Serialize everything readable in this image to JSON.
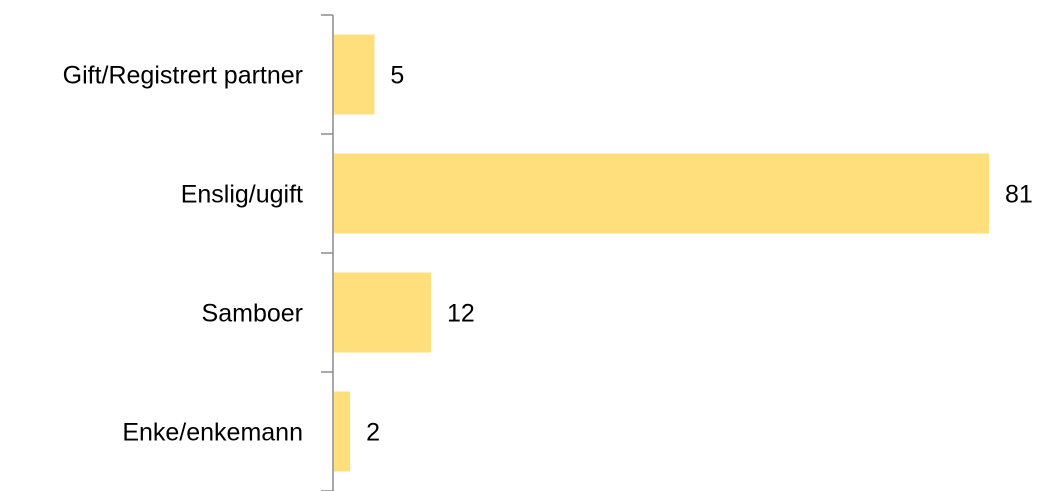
{
  "chart_data": {
    "type": "bar",
    "orientation": "horizontal",
    "categories": [
      "Gift/Registrert partner",
      "Enslig/ugift",
      "Samboer",
      "Enke/enkemann"
    ],
    "values": [
      5,
      81,
      12,
      2
    ],
    "title": "",
    "xlabel": "",
    "ylabel": "",
    "xlim": [
      0,
      81
    ],
    "grid": false,
    "legend": "none",
    "data_labels": true,
    "colors": {
      "bar": "#FFDE7C",
      "axis": "#8C8C8C",
      "text": "#000000"
    }
  }
}
